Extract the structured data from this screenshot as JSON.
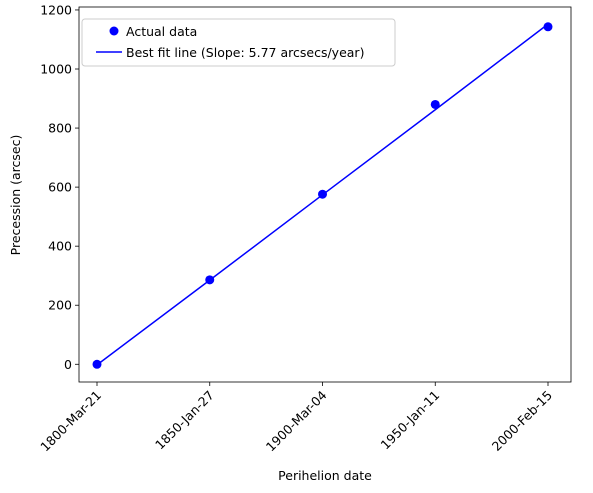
{
  "chart_data": {
    "type": "line",
    "title": "",
    "xlabel": "Perihelion date",
    "ylabel": "Precession (arcsec)",
    "categories": [
      "1800-Mar-21",
      "1850-Jan-27",
      "1900-Mar-04",
      "1950-Jan-11",
      "2000-Feb-15"
    ],
    "ylim": [
      -60,
      1210
    ],
    "yticks": [
      0,
      200,
      400,
      600,
      800,
      1000,
      1200
    ],
    "grid": false,
    "legend_position": "top-left",
    "series": [
      {
        "name": "Actual data",
        "kind": "scatter",
        "color": "#0000ff",
        "values": [
          0,
          286,
          576,
          880,
          1143
        ]
      },
      {
        "name": "Best fit line (Slope: 5.77 arcsecs/year)",
        "kind": "line",
        "color": "#0000ff",
        "values": [
          -2,
          285,
          574,
          862,
          1152
        ]
      }
    ]
  }
}
